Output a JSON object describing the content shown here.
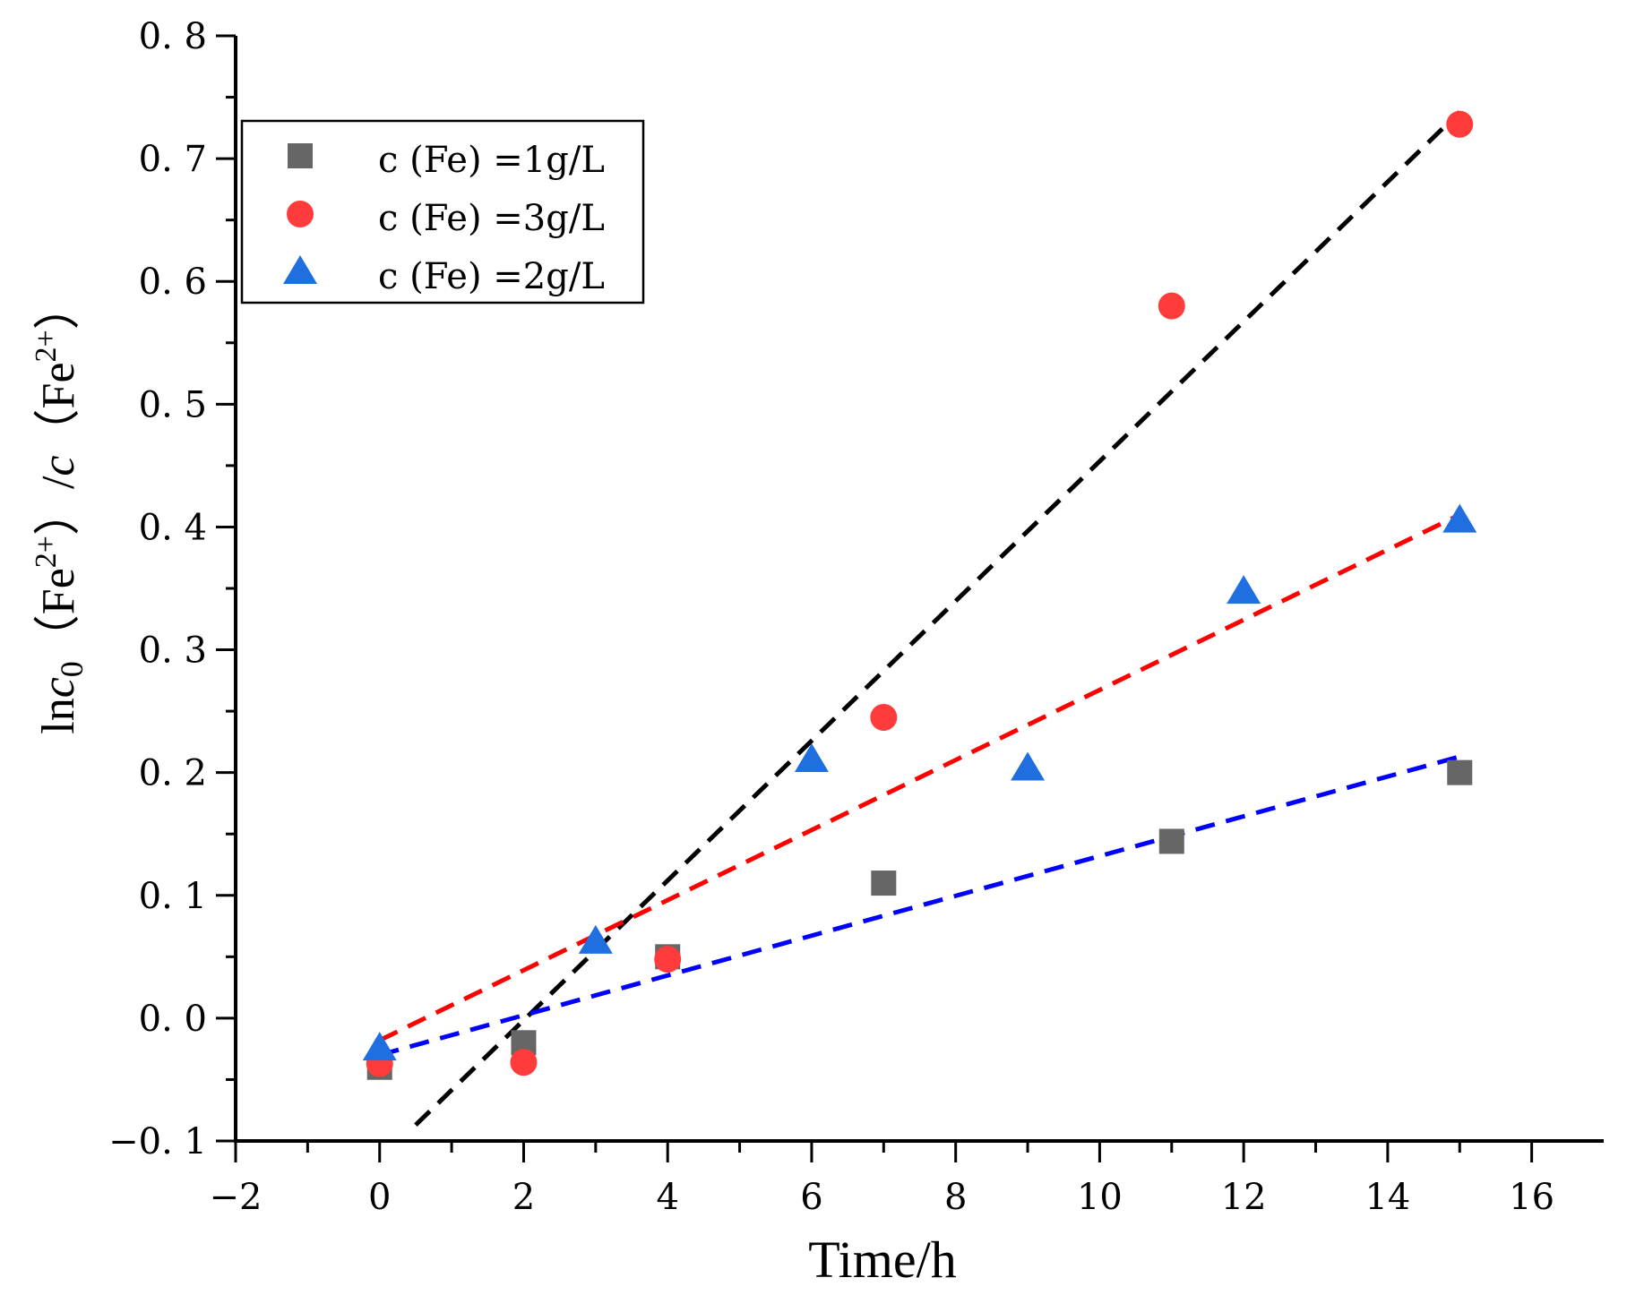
{
  "chart_data": {
    "type": "scatter",
    "title": "",
    "xlabel": "Time/h",
    "ylabel": {
      "part1": "ln",
      "c0": "c",
      "c0_sub": "0",
      "fe1_open": "（Fe",
      "fe1_sup": "2+",
      "fe1_close": "）/",
      "c": "c",
      "fe2_open": "（Fe",
      "fe2_sup": "2+",
      "fe2_close": "）"
    },
    "xlim": [
      -2,
      17
    ],
    "ylim": [
      -0.1,
      0.8
    ],
    "xticks": [
      -2,
      0,
      2,
      4,
      6,
      8,
      10,
      12,
      14,
      16
    ],
    "xtick_labels": [
      "−2",
      "0",
      "2",
      "4",
      "6",
      "8",
      "10",
      "12",
      "14",
      "16"
    ],
    "yticks": [
      -0.1,
      0.0,
      0.1,
      0.2,
      0.3,
      0.4,
      0.5,
      0.6,
      0.7,
      0.8
    ],
    "ytick_labels": [
      "−0. 1",
      "0. 0",
      "0. 1",
      "0. 2",
      "0. 3",
      "0. 4",
      "0. 5",
      "0. 6",
      "0. 7",
      "0. 8"
    ],
    "legend_position": "top-left",
    "series": [
      {
        "name": "c (Fe) =1g/L",
        "marker": "square",
        "color": "#666666",
        "x": [
          0,
          2,
          4,
          7,
          11,
          15
        ],
        "y": [
          -0.04,
          -0.02,
          0.05,
          0.11,
          0.144,
          0.2
        ]
      },
      {
        "name": "c (Fe) =3g/L",
        "marker": "circle",
        "color": "#ff3b3b",
        "x": [
          0,
          2,
          4,
          7,
          11,
          15
        ],
        "y": [
          -0.037,
          -0.036,
          0.048,
          0.245,
          0.58,
          0.728
        ]
      },
      {
        "name": "c (Fe) =2g/L",
        "marker": "triangle",
        "color": "#1f6fe0",
        "x": [
          0,
          3,
          6,
          9,
          12,
          15
        ],
        "y": [
          -0.025,
          0.062,
          0.21,
          0.203,
          0.347,
          0.405
        ]
      }
    ],
    "fit_lines": [
      {
        "name": "fit-black",
        "color": "#000000",
        "x": [
          0.5,
          15
        ],
        "y": [
          -0.087,
          0.738
        ]
      },
      {
        "name": "fit-red",
        "color": "#ff0000",
        "x": [
          0,
          15
        ],
        "y": [
          -0.018,
          0.41
        ]
      },
      {
        "name": "fit-blue",
        "color": "#0000ff",
        "x": [
          0,
          15
        ],
        "y": [
          -0.03,
          0.213
        ]
      }
    ]
  }
}
